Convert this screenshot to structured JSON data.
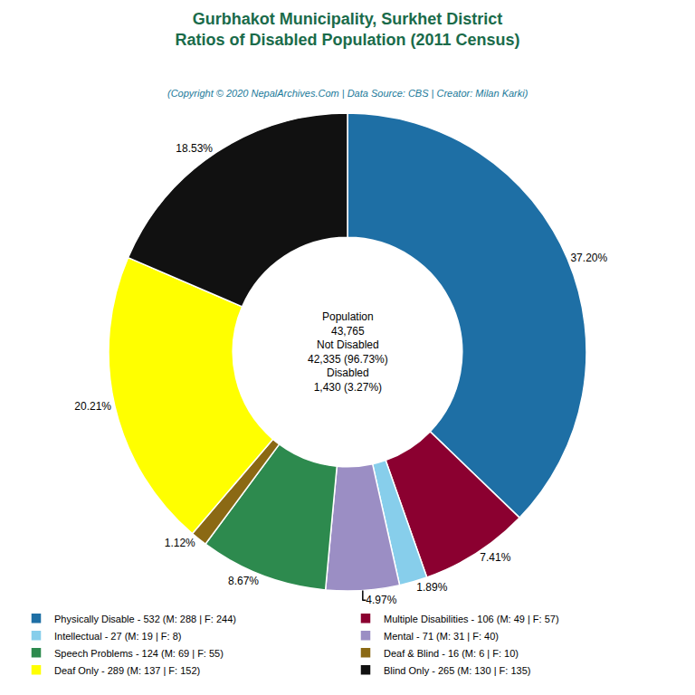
{
  "chart_data": {
    "type": "pie",
    "title": "Gurbhakot Municipality, Surkhet District\nRatios of Disabled Population (2011 Census)",
    "subtitle": "(Copyright © 2020 NepalArchives.Com | Data Source: CBS | Creator: Milan Karki)",
    "categories": [
      "Physically Disable - 532 (M: 288 | F: 244)",
      "Multiple Disabilities - 106 (M: 49 | F: 57)",
      "Intellectual - 27 (M: 19 | F: 8)",
      "Mental - 71 (M: 31 | F: 40)",
      "Speech Problems - 124 (M: 69 | F: 55)",
      "Deaf & Blind - 16 (M: 6 | F: 10)",
      "Deaf Only - 289 (M: 137 | F: 152)",
      "Blind Only - 265 (M: 130 | F: 135)"
    ],
    "values": [
      37.2,
      7.41,
      1.89,
      4.97,
      8.67,
      1.12,
      20.21,
      18.53
    ],
    "value_labels": [
      "37.20%",
      "7.41%",
      "1.89%",
      "4.97%",
      "8.67%",
      "1.12%",
      "20.21%",
      "18.53%"
    ],
    "colors": [
      "#1e6fa5",
      "#8b0030",
      "#87ceeb",
      "#9b8ec4",
      "#2d8a4e",
      "#8b6914",
      "#ffff00",
      "#111111"
    ],
    "annotations": [
      "Population",
      "43,765",
      "Not Disabled",
      "42,335 (96.73%)",
      "Disabled",
      "1,430 (3.27%)"
    ],
    "data_labels": true,
    "legend": "bottom"
  }
}
